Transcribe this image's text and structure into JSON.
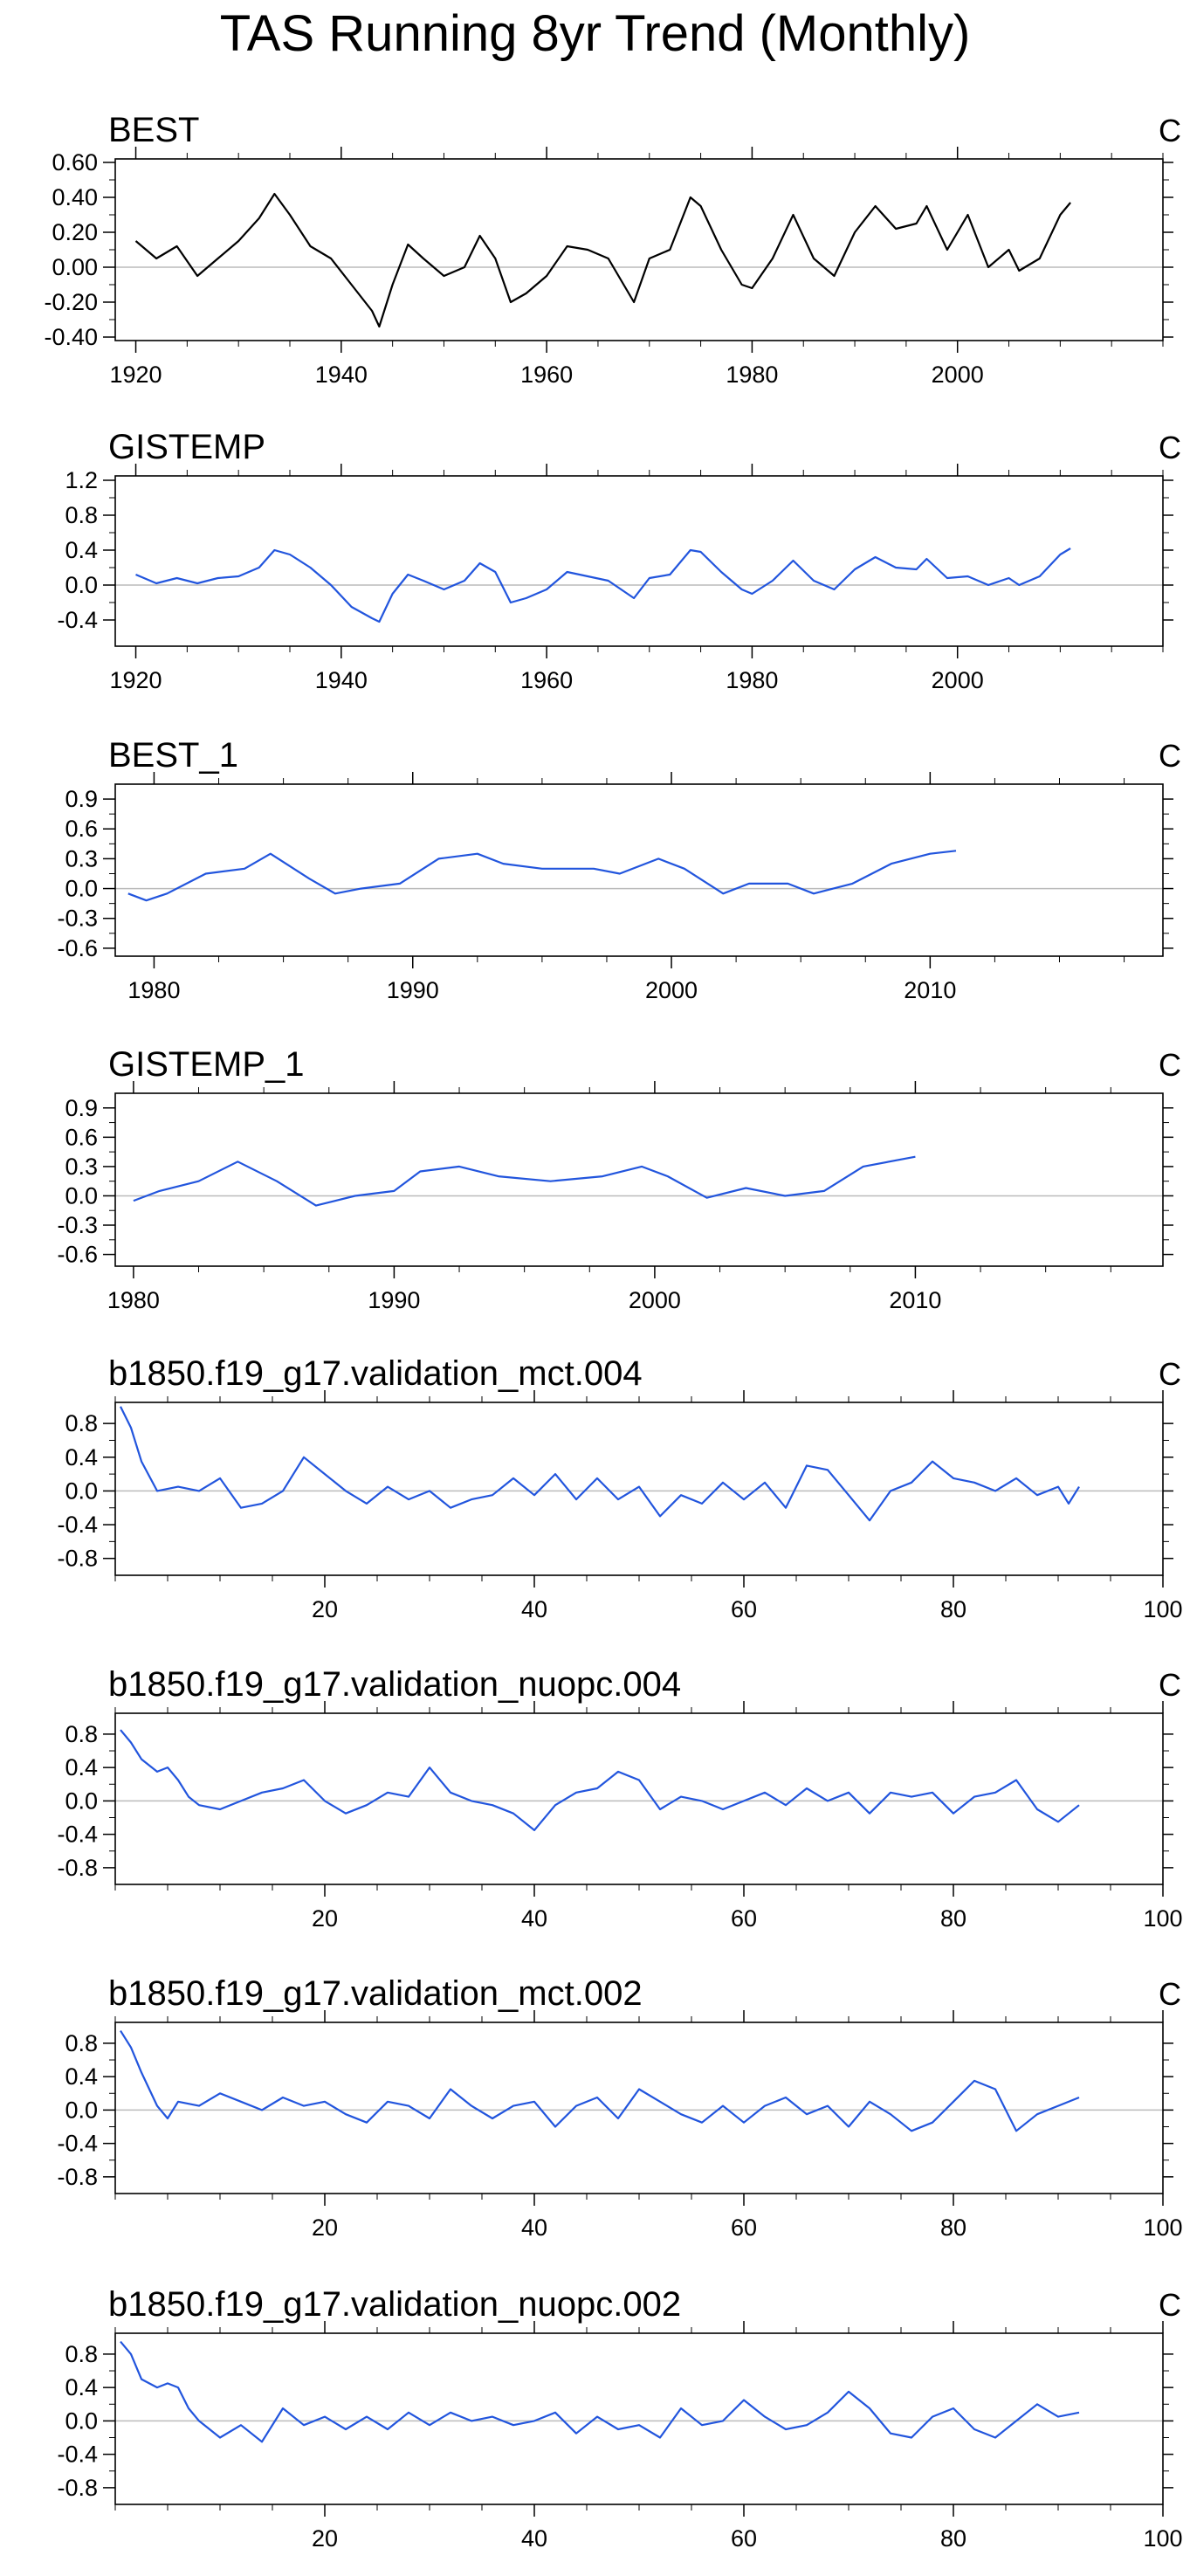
{
  "title": "TAS Running 8yr Trend (Monthly)",
  "colors": {
    "best": "#000000",
    "series": "#2255dd",
    "zero_line": "#bbbbbb",
    "axis": "#000000"
  },
  "chart_data": [
    {
      "type": "line",
      "title": "BEST",
      "unit": "C",
      "color": "#000000",
      "xlim": [
        1918,
        2020
      ],
      "ylim": [
        -0.42,
        0.62
      ],
      "xticks": [
        1920,
        1940,
        1960,
        1980,
        2000
      ],
      "xtick_labels": [
        "1920",
        "1940",
        "1960",
        "1980",
        "2000"
      ],
      "yticks": [
        -0.4,
        -0.2,
        0.0,
        0.2,
        0.4,
        0.6
      ],
      "ytick_labels": [
        "-0.40",
        "-0.20",
        "0.00",
        "0.20",
        "0.40",
        "0.60"
      ],
      "x": [
        1920,
        1922,
        1924,
        1926,
        1928,
        1930,
        1932,
        1933.5,
        1935,
        1937,
        1939,
        1941,
        1943,
        1943.7,
        1945,
        1946.5,
        1948,
        1950,
        1952,
        1953.5,
        1955,
        1956.5,
        1958,
        1960,
        1962,
        1964,
        1966,
        1968.5,
        1970,
        1972,
        1974,
        1975,
        1977,
        1979,
        1980,
        1982,
        1984,
        1986,
        1988,
        1990,
        1992,
        1994,
        1996,
        1997,
        1999,
        2001,
        2003,
        2005,
        2006,
        2008,
        2010,
        2011
      ],
      "values": [
        0.15,
        0.05,
        0.12,
        -0.05,
        0.05,
        0.15,
        0.28,
        0.42,
        0.3,
        0.12,
        0.05,
        -0.1,
        -0.25,
        -0.34,
        -0.1,
        0.13,
        0.05,
        -0.05,
        0.0,
        0.18,
        0.05,
        -0.2,
        -0.15,
        -0.05,
        0.12,
        0.1,
        0.05,
        -0.2,
        0.05,
        0.1,
        0.4,
        0.35,
        0.1,
        -0.1,
        -0.12,
        0.05,
        0.3,
        0.05,
        -0.05,
        0.2,
        0.35,
        0.22,
        0.25,
        0.35,
        0.1,
        0.3,
        0.0,
        0.1,
        -0.02,
        0.05,
        0.3,
        0.37
      ]
    },
    {
      "type": "line",
      "title": "GISTEMP",
      "unit": "C",
      "color": "#2255dd",
      "xlim": [
        1918,
        2020
      ],
      "ylim": [
        -0.7,
        1.25
      ],
      "xticks": [
        1920,
        1940,
        1960,
        1980,
        2000
      ],
      "xtick_labels": [
        "1920",
        "1940",
        "1960",
        "1980",
        "2000"
      ],
      "yticks": [
        -0.4,
        0.0,
        0.4,
        0.8,
        1.2
      ],
      "ytick_labels": [
        "-0.4",
        "0.0",
        "0.4",
        "0.8",
        "1.2"
      ],
      "x": [
        1920,
        1922,
        1924,
        1926,
        1928,
        1930,
        1932,
        1933.5,
        1935,
        1937,
        1939,
        1941,
        1943,
        1943.7,
        1945,
        1946.5,
        1948,
        1950,
        1952,
        1953.5,
        1955,
        1956.5,
        1958,
        1960,
        1962,
        1964,
        1966,
        1968.5,
        1970,
        1972,
        1974,
        1975,
        1977,
        1979,
        1980,
        1982,
        1984,
        1986,
        1988,
        1990,
        1992,
        1994,
        1996,
        1997,
        1999,
        2001,
        2003,
        2005,
        2006,
        2008,
        2010,
        2011
      ],
      "values": [
        0.12,
        0.02,
        0.08,
        0.02,
        0.08,
        0.1,
        0.2,
        0.4,
        0.35,
        0.2,
        0.0,
        -0.25,
        -0.38,
        -0.42,
        -0.1,
        0.12,
        0.05,
        -0.05,
        0.05,
        0.25,
        0.15,
        -0.2,
        -0.15,
        -0.05,
        0.15,
        0.1,
        0.05,
        -0.15,
        0.08,
        0.12,
        0.4,
        0.38,
        0.15,
        -0.05,
        -0.1,
        0.05,
        0.28,
        0.05,
        -0.05,
        0.18,
        0.32,
        0.2,
        0.18,
        0.3,
        0.08,
        0.1,
        0.0,
        0.08,
        0.0,
        0.1,
        0.35,
        0.42
      ]
    },
    {
      "type": "line",
      "title": "BEST_1",
      "unit": "C",
      "color": "#2255dd",
      "xlim": [
        1978.5,
        2019
      ],
      "ylim": [
        -0.68,
        1.05
      ],
      "xticks": [
        1980,
        1990,
        2000,
        2010
      ],
      "xtick_labels": [
        "1980",
        "1990",
        "2000",
        "2010"
      ],
      "yticks": [
        -0.6,
        -0.3,
        0.0,
        0.3,
        0.6,
        0.9
      ],
      "ytick_labels": [
        "-0.6",
        "-0.3",
        "0.0",
        "0.3",
        "0.6",
        "0.9"
      ],
      "x": [
        1979,
        1979.7,
        1980.5,
        1982,
        1983.5,
        1984.5,
        1986,
        1987,
        1988,
        1989.5,
        1991,
        1992.5,
        1993.5,
        1995,
        1997,
        1998,
        1999.5,
        2000.5,
        2002,
        2003,
        2004.5,
        2005.5,
        2007,
        2008.5,
        2010,
        2011
      ],
      "values": [
        -0.05,
        -0.12,
        -0.05,
        0.15,
        0.2,
        0.35,
        0.1,
        -0.05,
        0.0,
        0.05,
        0.3,
        0.35,
        0.25,
        0.2,
        0.2,
        0.15,
        0.3,
        0.2,
        -0.05,
        0.05,
        0.05,
        -0.05,
        0.05,
        0.25,
        0.35,
        0.38
      ]
    },
    {
      "type": "line",
      "title": "GISTEMP_1",
      "unit": "C",
      "color": "#2255dd",
      "xlim": [
        1979.3,
        2019.5
      ],
      "ylim": [
        -0.72,
        1.05
      ],
      "xticks": [
        1980,
        1990,
        2000,
        2010
      ],
      "xtick_labels": [
        "1980",
        "1990",
        "2000",
        "2010"
      ],
      "yticks": [
        -0.6,
        -0.3,
        0.0,
        0.3,
        0.6,
        0.9
      ],
      "ytick_labels": [
        "-0.6",
        "-0.3",
        "0.0",
        "0.3",
        "0.6",
        "0.9"
      ],
      "x": [
        1980,
        1981,
        1982.5,
        1984,
        1985.5,
        1987,
        1988.5,
        1990,
        1991,
        1992.5,
        1994,
        1996,
        1998,
        1999.5,
        2000.5,
        2002,
        2003.5,
        2005,
        2006.5,
        2008,
        2010
      ],
      "values": [
        -0.05,
        0.05,
        0.15,
        0.35,
        0.15,
        -0.1,
        0.0,
        0.05,
        0.25,
        0.3,
        0.2,
        0.15,
        0.2,
        0.3,
        0.2,
        -0.02,
        0.08,
        0.0,
        0.05,
        0.3,
        0.4
      ]
    },
    {
      "type": "line",
      "title": "b1850.f19_g17.validation_mct.004",
      "unit": "C",
      "color": "#2255dd",
      "xlim": [
        0,
        100
      ],
      "ylim": [
        -1.0,
        1.05
      ],
      "xticks": [
        20,
        40,
        60,
        80,
        100
      ],
      "xtick_labels": [
        "20",
        "40",
        "60",
        "80",
        "100"
      ],
      "yticks": [
        -0.8,
        -0.4,
        0.0,
        0.4,
        0.8
      ],
      "ytick_labels": [
        "-0.8",
        "-0.4",
        "0.0",
        "0.4",
        "0.8"
      ],
      "x": [
        0.5,
        1.5,
        2.5,
        4,
        6,
        8,
        10,
        12,
        14,
        16,
        18,
        20,
        22,
        24,
        26,
        28,
        30,
        32,
        34,
        36,
        38,
        40,
        42,
        44,
        46,
        48,
        50,
        52,
        54,
        56,
        58,
        60,
        62,
        64,
        66,
        68,
        70,
        72,
        74,
        76,
        78,
        80,
        82,
        84,
        86,
        88,
        90,
        91,
        92
      ],
      "values": [
        1.0,
        0.75,
        0.35,
        0.0,
        0.05,
        0.0,
        0.15,
        -0.2,
        -0.15,
        0.0,
        0.4,
        0.2,
        0.0,
        -0.15,
        0.05,
        -0.1,
        0.0,
        -0.2,
        -0.1,
        -0.05,
        0.15,
        -0.05,
        0.2,
        -0.1,
        0.15,
        -0.1,
        0.05,
        -0.3,
        -0.05,
        -0.15,
        0.1,
        -0.1,
        0.1,
        -0.2,
        0.3,
        0.25,
        -0.05,
        -0.35,
        0.0,
        0.1,
        0.35,
        0.15,
        0.1,
        0.0,
        0.15,
        -0.05,
        0.05,
        -0.15,
        0.05
      ]
    },
    {
      "type": "line",
      "title": "b1850.f19_g17.validation_nuopc.004",
      "unit": "C",
      "color": "#2255dd",
      "xlim": [
        0,
        100
      ],
      "ylim": [
        -1.0,
        1.05
      ],
      "xticks": [
        20,
        40,
        60,
        80,
        100
      ],
      "xtick_labels": [
        "20",
        "40",
        "60",
        "80",
        "100"
      ],
      "yticks": [
        -0.8,
        -0.4,
        0.0,
        0.4,
        0.8
      ],
      "ytick_labels": [
        "-0.8",
        "-0.4",
        "0.0",
        "0.4",
        "0.8"
      ],
      "x": [
        0.5,
        1.5,
        2.5,
        4,
        5,
        6,
        7,
        8,
        10,
        12,
        14,
        16,
        18,
        20,
        22,
        24,
        26,
        28,
        30,
        32,
        34,
        36,
        38,
        40,
        42,
        44,
        46,
        48,
        50,
        52,
        54,
        56,
        58,
        60,
        62,
        64,
        66,
        68,
        70,
        72,
        74,
        76,
        78,
        80,
        82,
        84,
        86,
        88,
        90,
        92
      ],
      "values": [
        0.85,
        0.7,
        0.5,
        0.35,
        0.4,
        0.25,
        0.05,
        -0.05,
        -0.1,
        0.0,
        0.1,
        0.15,
        0.25,
        0.0,
        -0.15,
        -0.05,
        0.1,
        0.05,
        0.4,
        0.1,
        0.0,
        -0.05,
        -0.15,
        -0.35,
        -0.05,
        0.1,
        0.15,
        0.35,
        0.25,
        -0.1,
        0.05,
        0.0,
        -0.1,
        0.0,
        0.1,
        -0.05,
        0.15,
        0.0,
        0.1,
        -0.15,
        0.1,
        0.05,
        0.1,
        -0.15,
        0.05,
        0.1,
        0.25,
        -0.1,
        -0.25,
        -0.05
      ]
    },
    {
      "type": "line",
      "title": "b1850.f19_g17.validation_mct.002",
      "unit": "C",
      "color": "#2255dd",
      "xlim": [
        0,
        100
      ],
      "ylim": [
        -1.0,
        1.05
      ],
      "xticks": [
        20,
        40,
        60,
        80,
        100
      ],
      "xtick_labels": [
        "20",
        "40",
        "60",
        "80",
        "100"
      ],
      "yticks": [
        -0.8,
        -0.4,
        0.0,
        0.4,
        0.8
      ],
      "ytick_labels": [
        "-0.8",
        "-0.4",
        "0.0",
        "0.4",
        "0.8"
      ],
      "x": [
        0.5,
        1.5,
        2.5,
        4,
        5,
        6,
        8,
        10,
        12,
        14,
        16,
        18,
        20,
        22,
        24,
        26,
        28,
        30,
        32,
        34,
        36,
        38,
        40,
        42,
        44,
        46,
        48,
        50,
        52,
        54,
        56,
        58,
        60,
        62,
        64,
        66,
        68,
        70,
        72,
        74,
        76,
        78,
        80,
        82,
        84,
        86,
        88,
        90,
        92
      ],
      "values": [
        0.95,
        0.75,
        0.45,
        0.05,
        -0.1,
        0.1,
        0.05,
        0.2,
        0.1,
        0.0,
        0.15,
        0.05,
        0.1,
        -0.05,
        -0.15,
        0.1,
        0.05,
        -0.1,
        0.25,
        0.05,
        -0.1,
        0.05,
        0.1,
        -0.2,
        0.05,
        0.15,
        -0.1,
        0.25,
        0.1,
        -0.05,
        -0.15,
        0.05,
        -0.15,
        0.05,
        0.15,
        -0.05,
        0.05,
        -0.2,
        0.1,
        -0.05,
        -0.25,
        -0.15,
        0.1,
        0.35,
        0.25,
        -0.25,
        -0.05,
        0.05,
        0.15
      ]
    },
    {
      "type": "line",
      "title": "b1850.f19_g17.validation_nuopc.002",
      "unit": "C",
      "color": "#2255dd",
      "xlim": [
        0,
        100
      ],
      "ylim": [
        -1.0,
        1.05
      ],
      "xticks": [
        20,
        40,
        60,
        80,
        100
      ],
      "xtick_labels": [
        "20",
        "40",
        "60",
        "80",
        "100"
      ],
      "yticks": [
        -0.8,
        -0.4,
        0.0,
        0.4,
        0.8
      ],
      "ytick_labels": [
        "-0.8",
        "-0.4",
        "0.0",
        "0.4",
        "0.8"
      ],
      "x": [
        0.5,
        1.5,
        2.5,
        4,
        5,
        6,
        7,
        8,
        10,
        12,
        14,
        16,
        18,
        20,
        22,
        24,
        26,
        28,
        30,
        32,
        34,
        36,
        38,
        40,
        42,
        44,
        46,
        48,
        50,
        52,
        54,
        56,
        58,
        60,
        62,
        64,
        66,
        68,
        70,
        72,
        74,
        76,
        78,
        80,
        82,
        84,
        86,
        88,
        90,
        92
      ],
      "values": [
        0.95,
        0.8,
        0.5,
        0.4,
        0.45,
        0.4,
        0.15,
        0.0,
        -0.2,
        -0.05,
        -0.25,
        0.15,
        -0.05,
        0.05,
        -0.1,
        0.05,
        -0.1,
        0.1,
        -0.05,
        0.1,
        0.0,
        0.05,
        -0.05,
        0.0,
        0.1,
        -0.15,
        0.05,
        -0.1,
        -0.05,
        -0.2,
        0.15,
        -0.05,
        0.0,
        0.25,
        0.05,
        -0.1,
        -0.05,
        0.1,
        0.35,
        0.15,
        -0.15,
        -0.2,
        0.05,
        0.15,
        -0.1,
        -0.2,
        0.0,
        0.2,
        0.05,
        0.1
      ]
    }
  ]
}
